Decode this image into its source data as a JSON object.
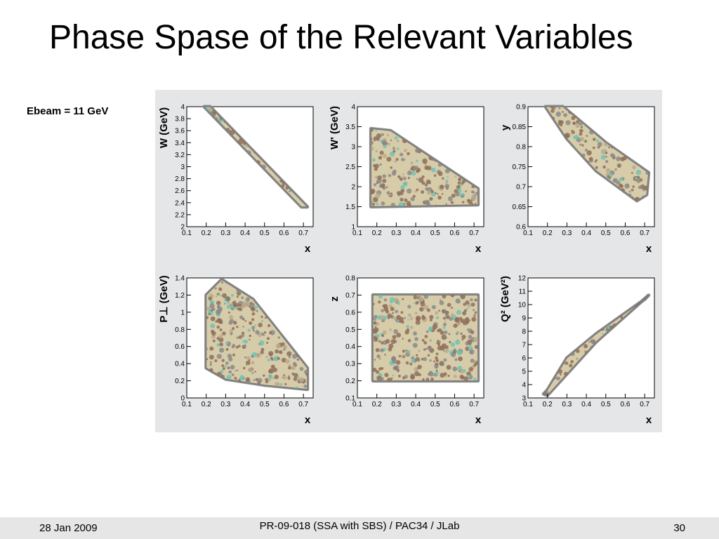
{
  "slide": {
    "title": "Phase Spase of the Relevant Variables",
    "annotation": "Ebeam = 11 GeV"
  },
  "footer": {
    "date": "28 Jan 2009",
    "center": "PR-09-018 (SSA with SBS) / PAC34 / JLab",
    "page": "30"
  },
  "colors": {
    "panel_bg": "#e4e6e7",
    "plot_bg": "#ffffff",
    "fill_beige": "#d7ccaa",
    "fill_brown": "#8f6e5a",
    "fill_grey": "#8a8a8a",
    "fill_teal": "#6fc4b4"
  },
  "chart_data": [
    {
      "type": "heatmap",
      "ylabel": "W (GeV)",
      "xlabel": "x",
      "xlim": [
        0.1,
        0.75
      ],
      "ylim": [
        2,
        4
      ],
      "x_ticks": [
        "0.1",
        "0.2",
        "0.3",
        "0.4",
        "0.5",
        "0.6",
        "0.7"
      ],
      "y_ticks": [
        "2",
        "2.2",
        "2.4",
        "2.6",
        "2.8",
        "3",
        "3.2",
        "3.4",
        "3.6",
        "3.8",
        "4"
      ],
      "region": [
        [
          0.19,
          4.0
        ],
        [
          0.22,
          4.0
        ],
        [
          0.72,
          2.33
        ],
        [
          0.69,
          2.33
        ]
      ]
    },
    {
      "type": "heatmap",
      "ylabel": "W' (GeV)",
      "xlabel": "x",
      "xlim": [
        0.1,
        0.75
      ],
      "ylim": [
        1,
        4
      ],
      "x_ticks": [
        "0.1",
        "0.2",
        "0.3",
        "0.4",
        "0.5",
        "0.6",
        "0.7"
      ],
      "y_ticks": [
        "1",
        "1.5",
        "2",
        "2.5",
        "3",
        "3.5",
        "4"
      ],
      "region": [
        [
          0.17,
          3.45
        ],
        [
          0.27,
          3.4
        ],
        [
          0.72,
          1.95
        ],
        [
          0.72,
          1.55
        ],
        [
          0.17,
          1.5
        ]
      ]
    },
    {
      "type": "heatmap",
      "ylabel": "y",
      "xlabel": "x",
      "xlim": [
        0.1,
        0.75
      ],
      "ylim": [
        0.6,
        0.9
      ],
      "x_ticks": [
        "0.1",
        "0.2",
        "0.3",
        "0.4",
        "0.5",
        "0.6",
        "0.7"
      ],
      "y_ticks": [
        "0.6",
        "0.65",
        "0.7",
        "0.75",
        "0.8",
        "0.85",
        "0.9"
      ],
      "region": [
        [
          0.19,
          0.9
        ],
        [
          0.28,
          0.9
        ],
        [
          0.5,
          0.81
        ],
        [
          0.72,
          0.735
        ],
        [
          0.71,
          0.68
        ],
        [
          0.66,
          0.665
        ],
        [
          0.45,
          0.74
        ],
        [
          0.3,
          0.82
        ]
      ]
    },
    {
      "type": "heatmap",
      "ylabel": "P⊥ (GeV)",
      "xlabel": "x",
      "xlim": [
        0.1,
        0.75
      ],
      "ylim": [
        0,
        1.4
      ],
      "x_ticks": [
        "0.1",
        "0.2",
        "0.3",
        "0.4",
        "0.5",
        "0.6",
        "0.7"
      ],
      "y_ticks": [
        "0",
        "0.2",
        "0.4",
        "0.6",
        "0.8",
        "1",
        "1.2",
        "1.4"
      ],
      "region": [
        [
          0.2,
          1.2
        ],
        [
          0.28,
          1.38
        ],
        [
          0.44,
          1.15
        ],
        [
          0.72,
          0.35
        ],
        [
          0.72,
          0.1
        ],
        [
          0.5,
          0.15
        ],
        [
          0.3,
          0.22
        ],
        [
          0.2,
          0.35
        ]
      ]
    },
    {
      "type": "heatmap",
      "ylabel": "z",
      "xlabel": "x",
      "xlim": [
        0.1,
        0.75
      ],
      "ylim": [
        0.1,
        0.8
      ],
      "x_ticks": [
        "0.1",
        "0.2",
        "0.3",
        "0.4",
        "0.5",
        "0.6",
        "0.7"
      ],
      "y_ticks": [
        "0.1",
        "0.2",
        "0.3",
        "0.4",
        "0.5",
        "0.6",
        "0.7",
        "0.8"
      ],
      "region": [
        [
          0.18,
          0.7
        ],
        [
          0.72,
          0.7
        ],
        [
          0.72,
          0.2
        ],
        [
          0.18,
          0.2
        ]
      ]
    },
    {
      "type": "heatmap",
      "ylabel": "Q² (GeV²)",
      "xlabel": "x",
      "xlim": [
        0.1,
        0.75
      ],
      "ylim": [
        3,
        12
      ],
      "x_ticks": [
        "0.1",
        "0.2",
        "0.3",
        "0.4",
        "0.5",
        "0.6",
        "0.7"
      ],
      "y_ticks": [
        "3",
        "4",
        "5",
        "6",
        "7",
        "8",
        "9",
        "10",
        "11",
        "12"
      ],
      "region": [
        [
          0.18,
          3.3
        ],
        [
          0.2,
          3.2
        ],
        [
          0.45,
          7.2
        ],
        [
          0.72,
          10.7
        ],
        [
          0.7,
          10.4
        ],
        [
          0.45,
          7.8
        ],
        [
          0.3,
          6.0
        ],
        [
          0.2,
          3.6
        ]
      ]
    }
  ]
}
